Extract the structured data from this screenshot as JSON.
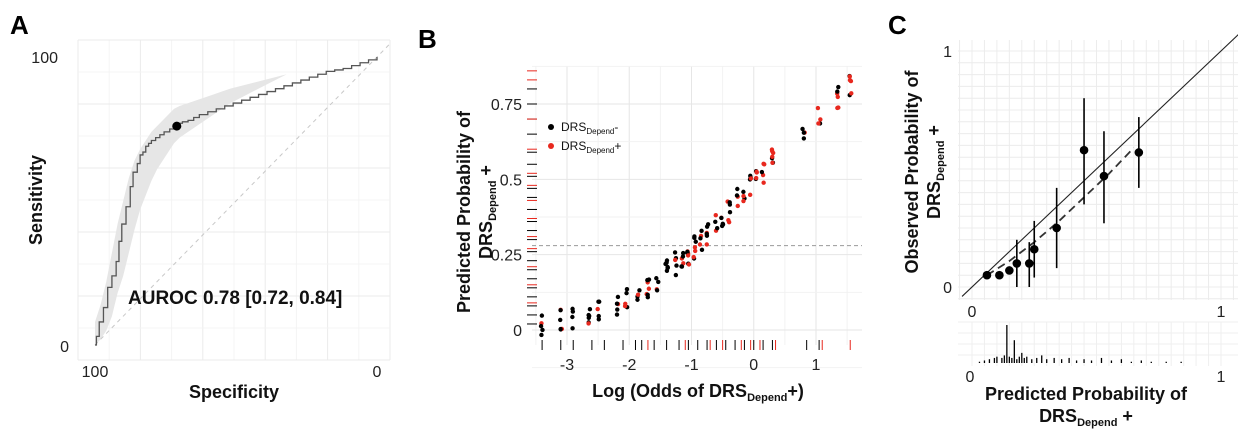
{
  "chart_data": [
    {
      "panel_label": "A",
      "type": "line",
      "xlabel": "Specificity",
      "ylabel": "Sensitivity",
      "x_reversed": true,
      "xlim": [
        100,
        0
      ],
      "ylim": [
        0,
        100
      ],
      "xticks": [
        "100",
        "0"
      ],
      "yticks": [
        "0",
        "100"
      ],
      "annotation": "AUROC 0.78 [0.72, 0.84]",
      "roc": {
        "x": [
          100,
          99.5,
          98.5,
          97,
          95.5,
          94,
          92.5,
          91.5,
          90.5,
          89,
          87.5,
          86.5,
          85,
          84,
          83,
          82,
          81,
          80,
          78.5,
          77,
          75.5,
          73.5,
          72,
          70.5,
          69,
          67,
          65,
          63,
          60,
          57,
          54,
          51,
          48,
          45,
          42,
          39,
          36,
          33,
          30,
          27,
          24,
          21,
          18,
          15,
          12,
          9,
          6,
          3,
          0
        ],
        "y": [
          0,
          3,
          8,
          13,
          20,
          24,
          29,
          36,
          42,
          48,
          55,
          60,
          63,
          66,
          67,
          69,
          70,
          71,
          72,
          73,
          74,
          75,
          76,
          77,
          77.5,
          78,
          79,
          80,
          81,
          82,
          83,
          84,
          85,
          86,
          87,
          88,
          89,
          90,
          91,
          92,
          93,
          94,
          95,
          95.5,
          96,
          97,
          98,
          99,
          100
        ]
      },
      "ci_upper": [
        8,
        14,
        22,
        32,
        42,
        50,
        58,
        64,
        68,
        71,
        74,
        76,
        78,
        80,
        82,
        83,
        84,
        85,
        86,
        87,
        88,
        89,
        90,
        91,
        92,
        93,
        94,
        95,
        96,
        97,
        98,
        99,
        100
      ],
      "ci_lower": [
        0,
        2,
        5,
        10,
        18,
        24,
        32,
        40,
        47,
        52,
        57,
        61,
        64,
        67,
        70,
        72,
        74,
        76,
        78,
        80,
        82,
        84,
        86,
        88,
        90,
        92,
        94,
        95,
        96,
        97,
        98,
        99,
        100
      ],
      "ci_x": [
        100,
        98,
        96,
        94,
        92,
        90,
        88,
        86,
        84,
        82,
        80,
        78,
        76,
        74,
        72,
        70,
        67,
        64,
        61,
        58,
        55,
        52,
        48,
        44,
        40,
        36,
        32,
        28,
        22,
        16,
        10,
        5,
        0
      ],
      "optimal_point": {
        "x": 71,
        "y": 76
      }
    },
    {
      "panel_label": "B",
      "type": "scatter",
      "xlabel": "Log (Odds of DRS",
      "xlabel_sub": "Depend",
      "xlabel_suffix": "+)",
      "ylabel": "Predicted Probability of",
      "ylabel_line2": "DRS",
      "ylabel_sub": "Depend",
      "ylabel_suffix": " +",
      "xlim": [
        -3.65,
        1.75
      ],
      "ylim": [
        -0.05,
        0.9
      ],
      "xticks": [
        -3,
        -2,
        -1,
        0,
        1
      ],
      "yticks": [
        0,
        0.25,
        0.5,
        0.75
      ],
      "ytick_labels": [
        "0",
        "0.25",
        "0.5",
        "0.75"
      ],
      "xtick_labels": [
        "-3",
        "-2",
        "-1",
        "0",
        "1"
      ],
      "threshold_y": 0.28,
      "legend": [
        {
          "label": "DRS",
          "sub": "Depend",
          "suffix": "-",
          "color": "#000000"
        },
        {
          "label": "DRS",
          "sub": "Depend",
          "suffix": "+",
          "color": "#e8281e"
        }
      ],
      "colors": {
        "negative": "#000000",
        "positive": "#e8281e"
      },
      "rug_x_negative": [
        -3.4,
        -3.1,
        -2.9,
        -2.6,
        -2.4,
        -2.1,
        -1.9,
        -1.8,
        -1.6,
        -1.4,
        -1.2,
        -1.05,
        -0.9,
        -0.75,
        -0.6,
        -0.45,
        -0.3,
        -0.15,
        0.0,
        0.15,
        0.3,
        0.85,
        1.05
      ],
      "rug_x_positive": [
        -1.7,
        -1.1,
        -0.7,
        -0.5,
        -0.2,
        -0.05,
        0.1,
        0.35,
        1.1,
        1.55
      ],
      "rug_y_negative": [
        0.02,
        0.05,
        0.08,
        0.11,
        0.14,
        0.17,
        0.2,
        0.23,
        0.26,
        0.3,
        0.33,
        0.36,
        0.4,
        0.44,
        0.47,
        0.51,
        0.55,
        0.59,
        0.65,
        0.7,
        0.75,
        0.8
      ],
      "rug_y_positive": [
        0.09,
        0.15,
        0.21,
        0.27,
        0.31,
        0.37,
        0.43,
        0.48,
        0.52,
        0.6,
        0.7,
        0.83,
        0.86
      ]
    },
    {
      "panel_label": "C",
      "type": "scatter",
      "xlabel": "Predicted Probability of",
      "xlabel_line2": "DRS",
      "xlabel_sub": "Depend",
      "xlabel_suffix": " +",
      "ylabel": "Observed Probability of",
      "ylabel_line2": "DRS",
      "ylabel_sub": "Depend",
      "ylabel_suffix": " +",
      "xlim": [
        -0.05,
        1.0
      ],
      "ylim": [
        -0.05,
        1.0
      ],
      "xticks": [
        "0",
        "1"
      ],
      "yticks": [
        "0",
        "1"
      ],
      "hist_xticks": [
        "0",
        "1"
      ],
      "points": [
        {
          "x": 0.06,
          "y": 0.05,
          "lo": 0.05,
          "hi": 0.05
        },
        {
          "x": 0.11,
          "y": 0.05,
          "lo": 0.05,
          "hi": 0.05
        },
        {
          "x": 0.15,
          "y": 0.07,
          "lo": 0.07,
          "hi": 0.07
        },
        {
          "x": 0.18,
          "y": 0.1,
          "lo": 0.0,
          "hi": 0.2
        },
        {
          "x": 0.23,
          "y": 0.1,
          "lo": 0.0,
          "hi": 0.19
        },
        {
          "x": 0.25,
          "y": 0.16,
          "lo": 0.04,
          "hi": 0.28
        },
        {
          "x": 0.34,
          "y": 0.25,
          "lo": 0.08,
          "hi": 0.42
        },
        {
          "x": 0.45,
          "y": 0.58,
          "lo": 0.35,
          "hi": 0.8
        },
        {
          "x": 0.53,
          "y": 0.47,
          "lo": 0.27,
          "hi": 0.66
        },
        {
          "x": 0.67,
          "y": 0.57,
          "lo": 0.42,
          "hi": 0.72
        }
      ],
      "histogram": {
        "x": [
          0.03,
          0.05,
          0.07,
          0.09,
          0.1,
          0.12,
          0.13,
          0.14,
          0.15,
          0.16,
          0.17,
          0.18,
          0.19,
          0.2,
          0.21,
          0.22,
          0.24,
          0.26,
          0.28,
          0.3,
          0.33,
          0.36,
          0.39,
          0.42,
          0.45,
          0.48,
          0.52,
          0.56,
          0.6,
          0.64,
          0.68,
          0.72,
          0.78,
          0.84
        ],
        "count": [
          1,
          2,
          3,
          4,
          5,
          4,
          6,
          30,
          5,
          4,
          18,
          3,
          5,
          8,
          4,
          5,
          3,
          4,
          6,
          3,
          4,
          3,
          4,
          2,
          3,
          2,
          4,
          2,
          3,
          1,
          2,
          1,
          1,
          1
        ]
      }
    }
  ]
}
